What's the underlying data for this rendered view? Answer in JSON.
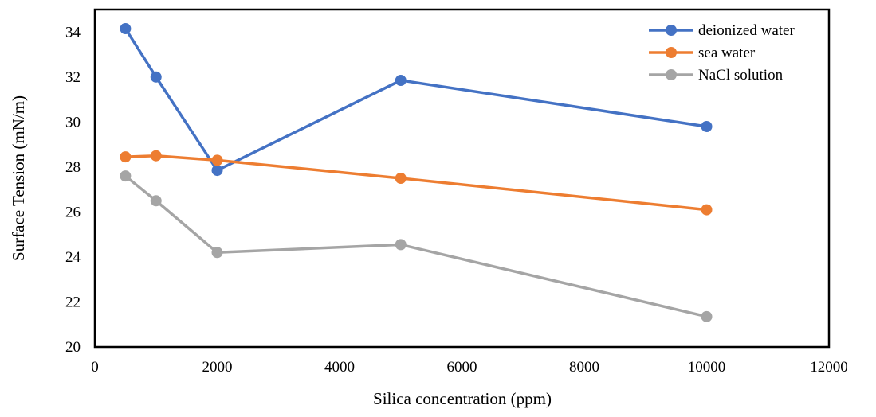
{
  "chart_data": {
    "type": "line",
    "title": "",
    "xlabel": "Silica concentration (ppm)",
    "ylabel": "Surface Tension (mN/m)",
    "xlim": [
      0,
      12000
    ],
    "ylim": [
      20,
      35
    ],
    "xticks": [
      0,
      2000,
      4000,
      6000,
      8000,
      10000,
      12000
    ],
    "yticks": [
      20,
      22,
      24,
      26,
      28,
      30,
      32,
      34
    ],
    "grid": false,
    "legend_position": "top-right",
    "x": [
      500,
      1000,
      2000,
      5000,
      10000
    ],
    "series": [
      {
        "name": "deionized water",
        "color": "#4472C4",
        "values": [
          34.15,
          32.0,
          27.85,
          31.85,
          29.8
        ]
      },
      {
        "name": "sea water",
        "color": "#ED7D31",
        "values": [
          28.45,
          28.5,
          28.3,
          27.5,
          26.1
        ]
      },
      {
        "name": "NaCl solution",
        "color": "#A5A5A5",
        "values": [
          27.6,
          26.5,
          24.2,
          24.55,
          21.35
        ]
      }
    ]
  }
}
